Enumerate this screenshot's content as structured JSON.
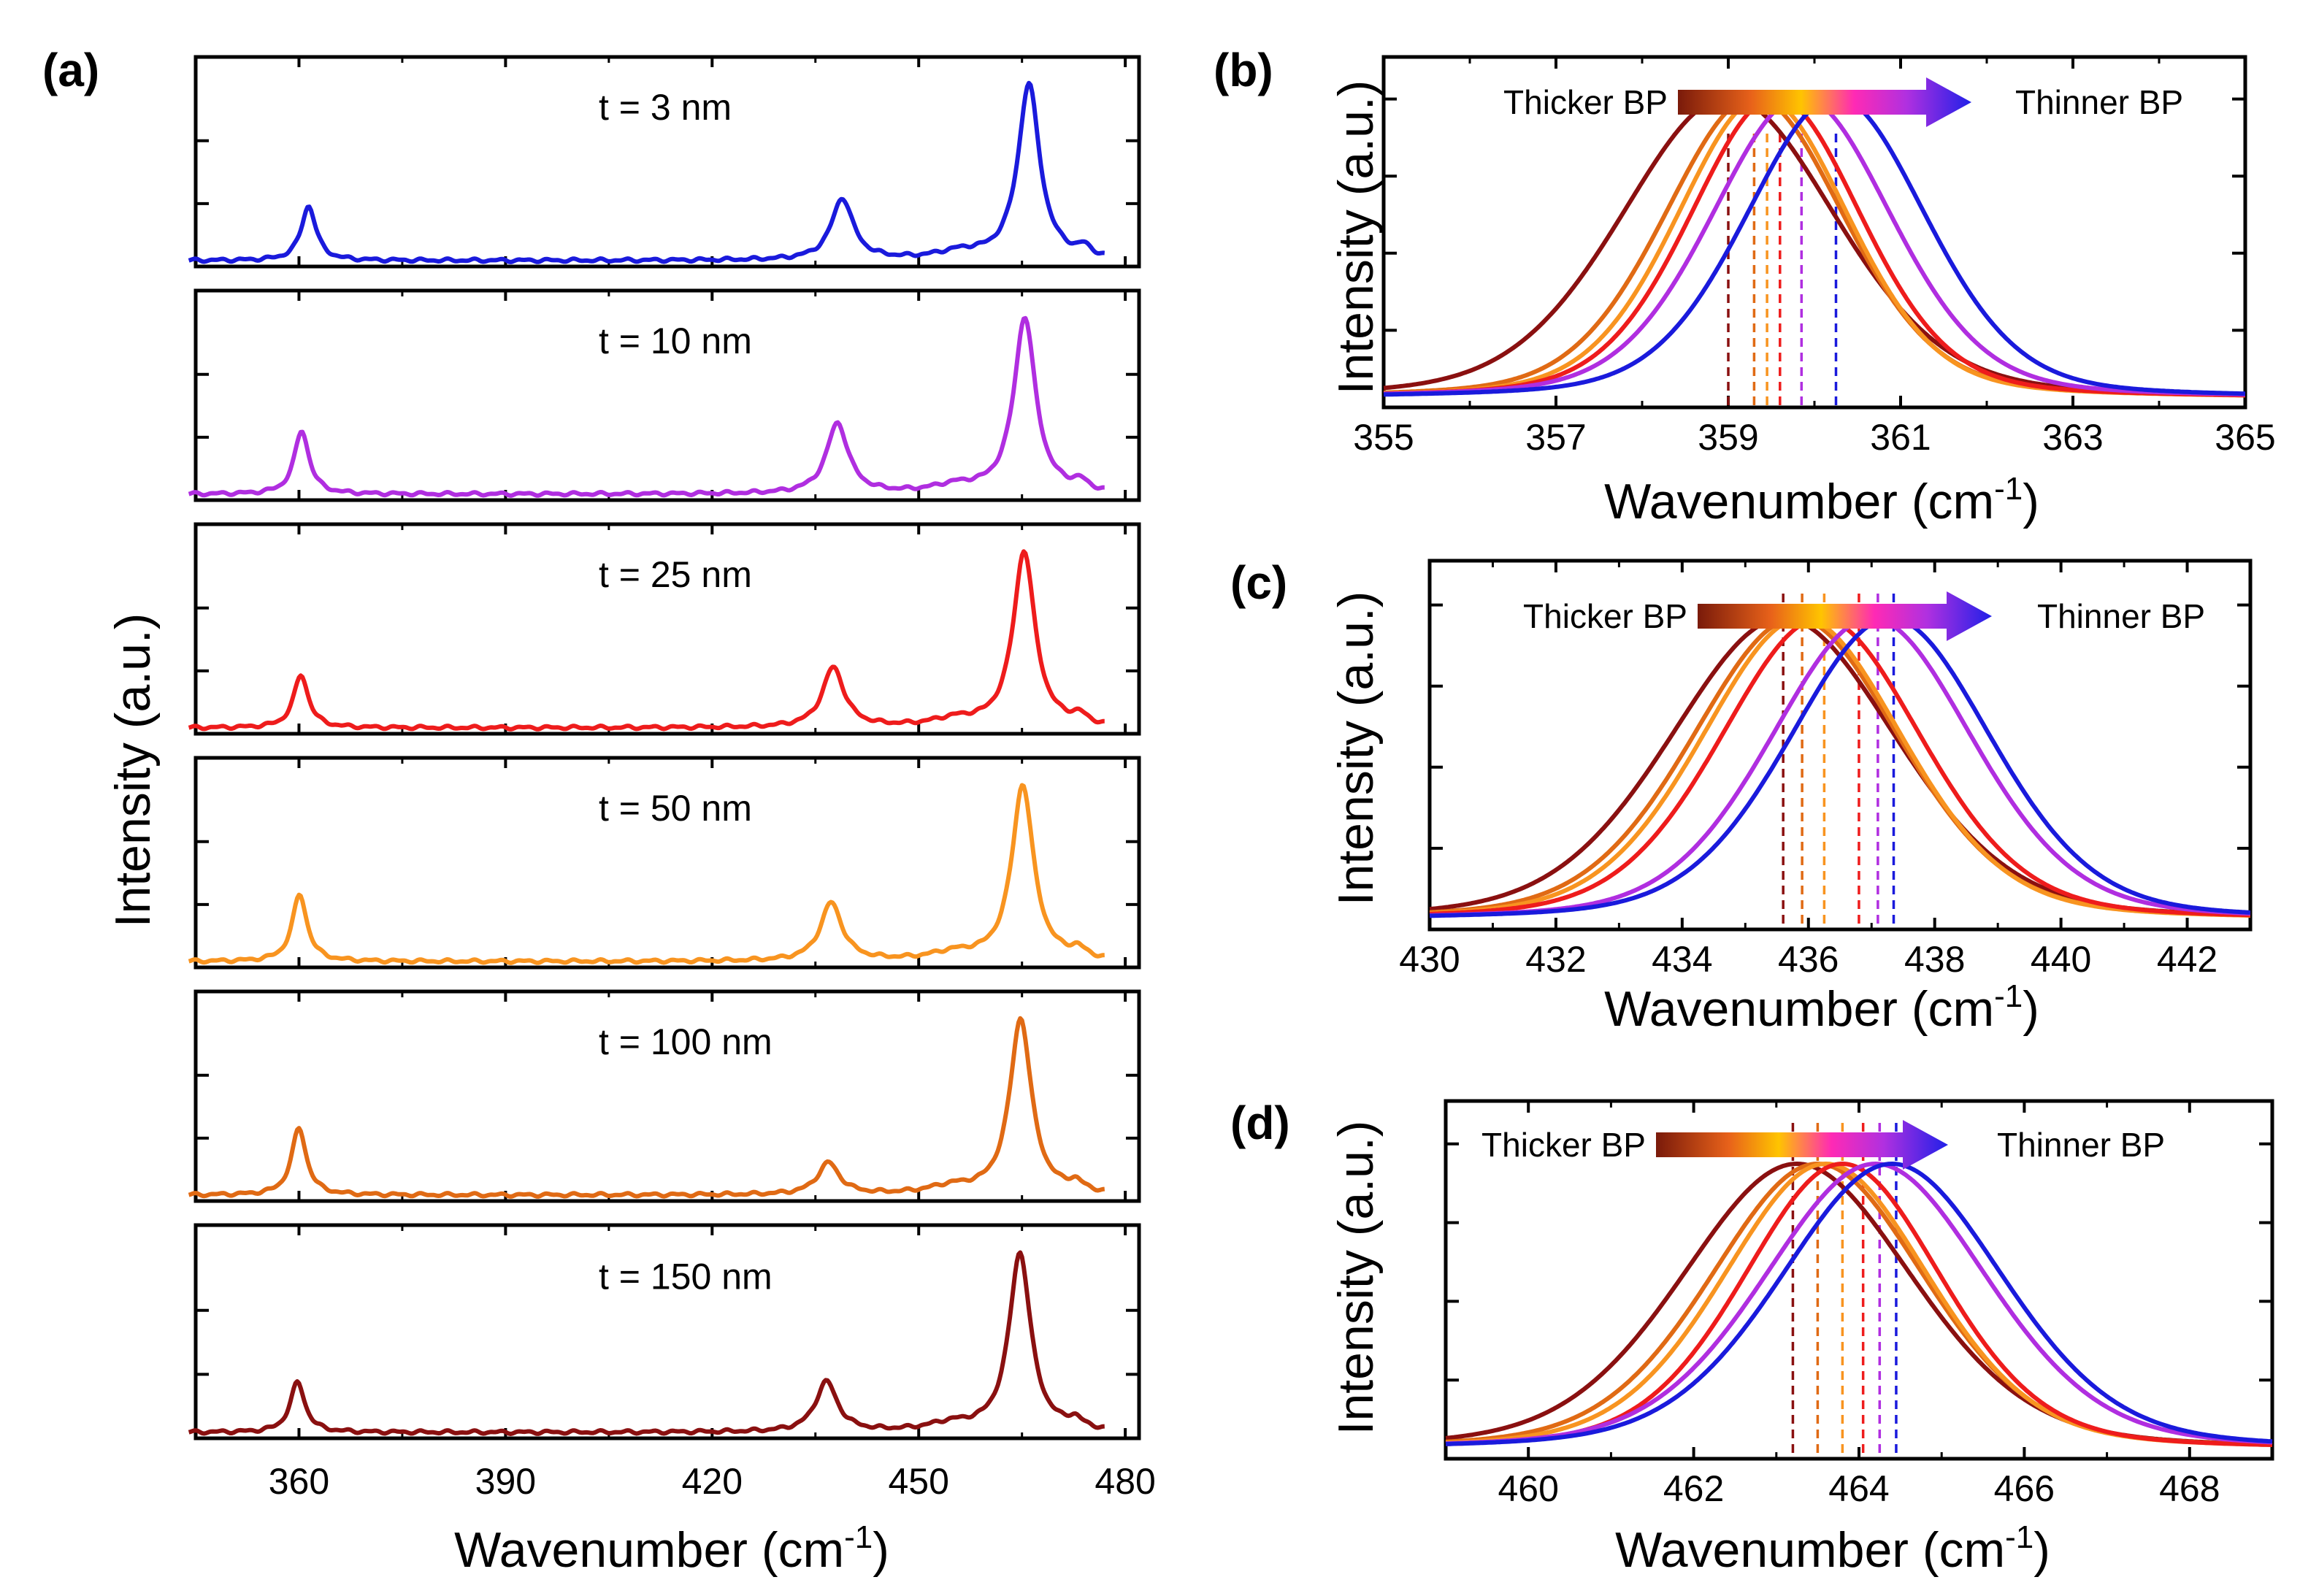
{
  "colors": {
    "3": "#1a1adc",
    "10": "#b02ee0",
    "25": "#ee1c1c",
    "50": "#f89420",
    "100": "#e06a14",
    "150": "#8a1010",
    "gradient": [
      "#7a1a0a",
      "#e8621a",
      "#ffc400",
      "#ff2ab4",
      "#b030e0",
      "#2020e8"
    ]
  },
  "chart_data": [
    {
      "panel": "(a)",
      "type": "line",
      "xlabel": "Wavenumber (cm",
      "xlabel_sup": "-1",
      "xlabel_end": ")",
      "ylabel": "Intensity (a.u.)",
      "xlim": [
        345,
        482
      ],
      "xticks": [
        360,
        390,
        420,
        450,
        480
      ],
      "series": [
        {
          "name": "t = 3 nm",
          "thickness": "3",
          "peaks": [
            [
              361.4,
              0.31
            ],
            [
              438.9,
              0.35
            ],
            [
              466.0,
              1.0
            ]
          ],
          "widths": [
            1.3,
            1.9,
            1.9
          ],
          "xrange": [
            344,
            477
          ]
        },
        {
          "name": "t = 10 nm",
          "thickness": "10",
          "peaks": [
            [
              360.4,
              0.36
            ],
            [
              438.2,
              0.4
            ],
            [
              465.4,
              1.0
            ]
          ],
          "widths": [
            1.3,
            1.9,
            1.9
          ],
          "xrange": [
            344,
            477
          ]
        },
        {
          "name": "t = 25 nm",
          "thickness": "25",
          "peaks": [
            [
              360.3,
              0.3
            ],
            [
              437.6,
              0.34
            ],
            [
              465.3,
              1.0
            ]
          ],
          "widths": [
            1.3,
            1.9,
            1.9
          ],
          "xrange": [
            344,
            477
          ]
        },
        {
          "name": "t = 50 nm",
          "thickness": "50",
          "peaks": [
            [
              360.1,
              0.38
            ],
            [
              437.3,
              0.33
            ],
            [
              465.1,
              1.0
            ]
          ],
          "widths": [
            1.3,
            1.9,
            1.9
          ],
          "xrange": [
            344,
            477
          ]
        },
        {
          "name": "t = 100 nm",
          "thickness": "100",
          "peaks": [
            [
              360.0,
              0.38
            ],
            [
              436.9,
              0.18
            ],
            [
              464.8,
              1.0
            ]
          ],
          "widths": [
            1.3,
            1.9,
            1.9
          ],
          "xrange": [
            344,
            477
          ]
        },
        {
          "name": "t = 150 nm",
          "thickness": "150",
          "peaks": [
            [
              359.8,
              0.28
            ],
            [
              436.6,
              0.28
            ],
            [
              464.7,
              1.0
            ]
          ],
          "widths": [
            1.3,
            1.9,
            1.9
          ],
          "xrange": [
            344,
            477
          ]
        }
      ]
    },
    {
      "panel": "(b)",
      "type": "line",
      "xlabel": "Wavenumber (cm",
      "xlabel_sup": "-1",
      "xlabel_end": ")",
      "ylabel": "Intensity (a.u.)",
      "xlim": [
        355,
        365
      ],
      "xticks": [
        355,
        357,
        359,
        361,
        363,
        365
      ],
      "thicker_label": "Thicker BP",
      "thinner_label": "Thinner BP",
      "series": [
        {
          "thickness": "150",
          "peak": 359.0,
          "width": 1.25
        },
        {
          "thickness": "100",
          "peak": 359.3,
          "width": 1.05
        },
        {
          "thickness": "50",
          "peak": 359.4,
          "width": 1.0
        },
        {
          "thickness": "25",
          "peak": 359.55,
          "width": 1.0
        },
        {
          "thickness": "10",
          "peak": 359.85,
          "width": 1.05
        },
        {
          "thickness": "3",
          "peak": 360.25,
          "width": 1.05
        }
      ],
      "marker_lines": [
        359.0,
        359.3,
        359.45,
        359.6,
        359.85,
        360.25
      ]
    },
    {
      "panel": "(c)",
      "type": "line",
      "xlabel": "Wavenumber (cm",
      "xlabel_sup": "-1",
      "xlabel_end": ")",
      "ylabel": "Intensity (a.u.)",
      "xlim": [
        430,
        443
      ],
      "xticks": [
        430,
        432,
        434,
        436,
        438,
        440,
        442
      ],
      "thicker_label": "Thicker BP",
      "thinner_label": "Thinner BP",
      "series": [
        {
          "thickness": "150",
          "peak": 435.6,
          "width": 1.8
        },
        {
          "thickness": "100",
          "peak": 435.8,
          "width": 1.65
        },
        {
          "thickness": "50",
          "peak": 435.9,
          "width": 1.6
        },
        {
          "thickness": "25",
          "peak": 436.2,
          "width": 1.6
        },
        {
          "thickness": "10",
          "peak": 437.0,
          "width": 1.6
        },
        {
          "thickness": "3",
          "peak": 437.3,
          "width": 1.6
        }
      ],
      "marker_lines": [
        435.6,
        435.9,
        436.25,
        436.8,
        437.1,
        437.35
      ]
    },
    {
      "panel": "(d)",
      "type": "line",
      "xlabel": "Wavenumber (cm",
      "xlabel_sup": "-1",
      "xlabel_end": ")",
      "ylabel": "Intensity (a.u.)",
      "xlim": [
        459,
        469
      ],
      "xticks": [
        460,
        462,
        464,
        466,
        468
      ],
      "thicker_label": "Thicker BP",
      "thinner_label": "Thinner BP",
      "series": [
        {
          "thickness": "150",
          "peak": 463.25,
          "width": 1.4
        },
        {
          "thickness": "100",
          "peak": 463.5,
          "width": 1.3
        },
        {
          "thickness": "50",
          "peak": 463.6,
          "width": 1.25
        },
        {
          "thickness": "25",
          "peak": 463.8,
          "width": 1.2
        },
        {
          "thickness": "10",
          "peak": 464.2,
          "width": 1.35
        },
        {
          "thickness": "3",
          "peak": 464.4,
          "width": 1.35
        }
      ],
      "marker_lines": [
        463.2,
        463.5,
        463.8,
        464.05,
        464.25,
        464.45
      ]
    }
  ]
}
